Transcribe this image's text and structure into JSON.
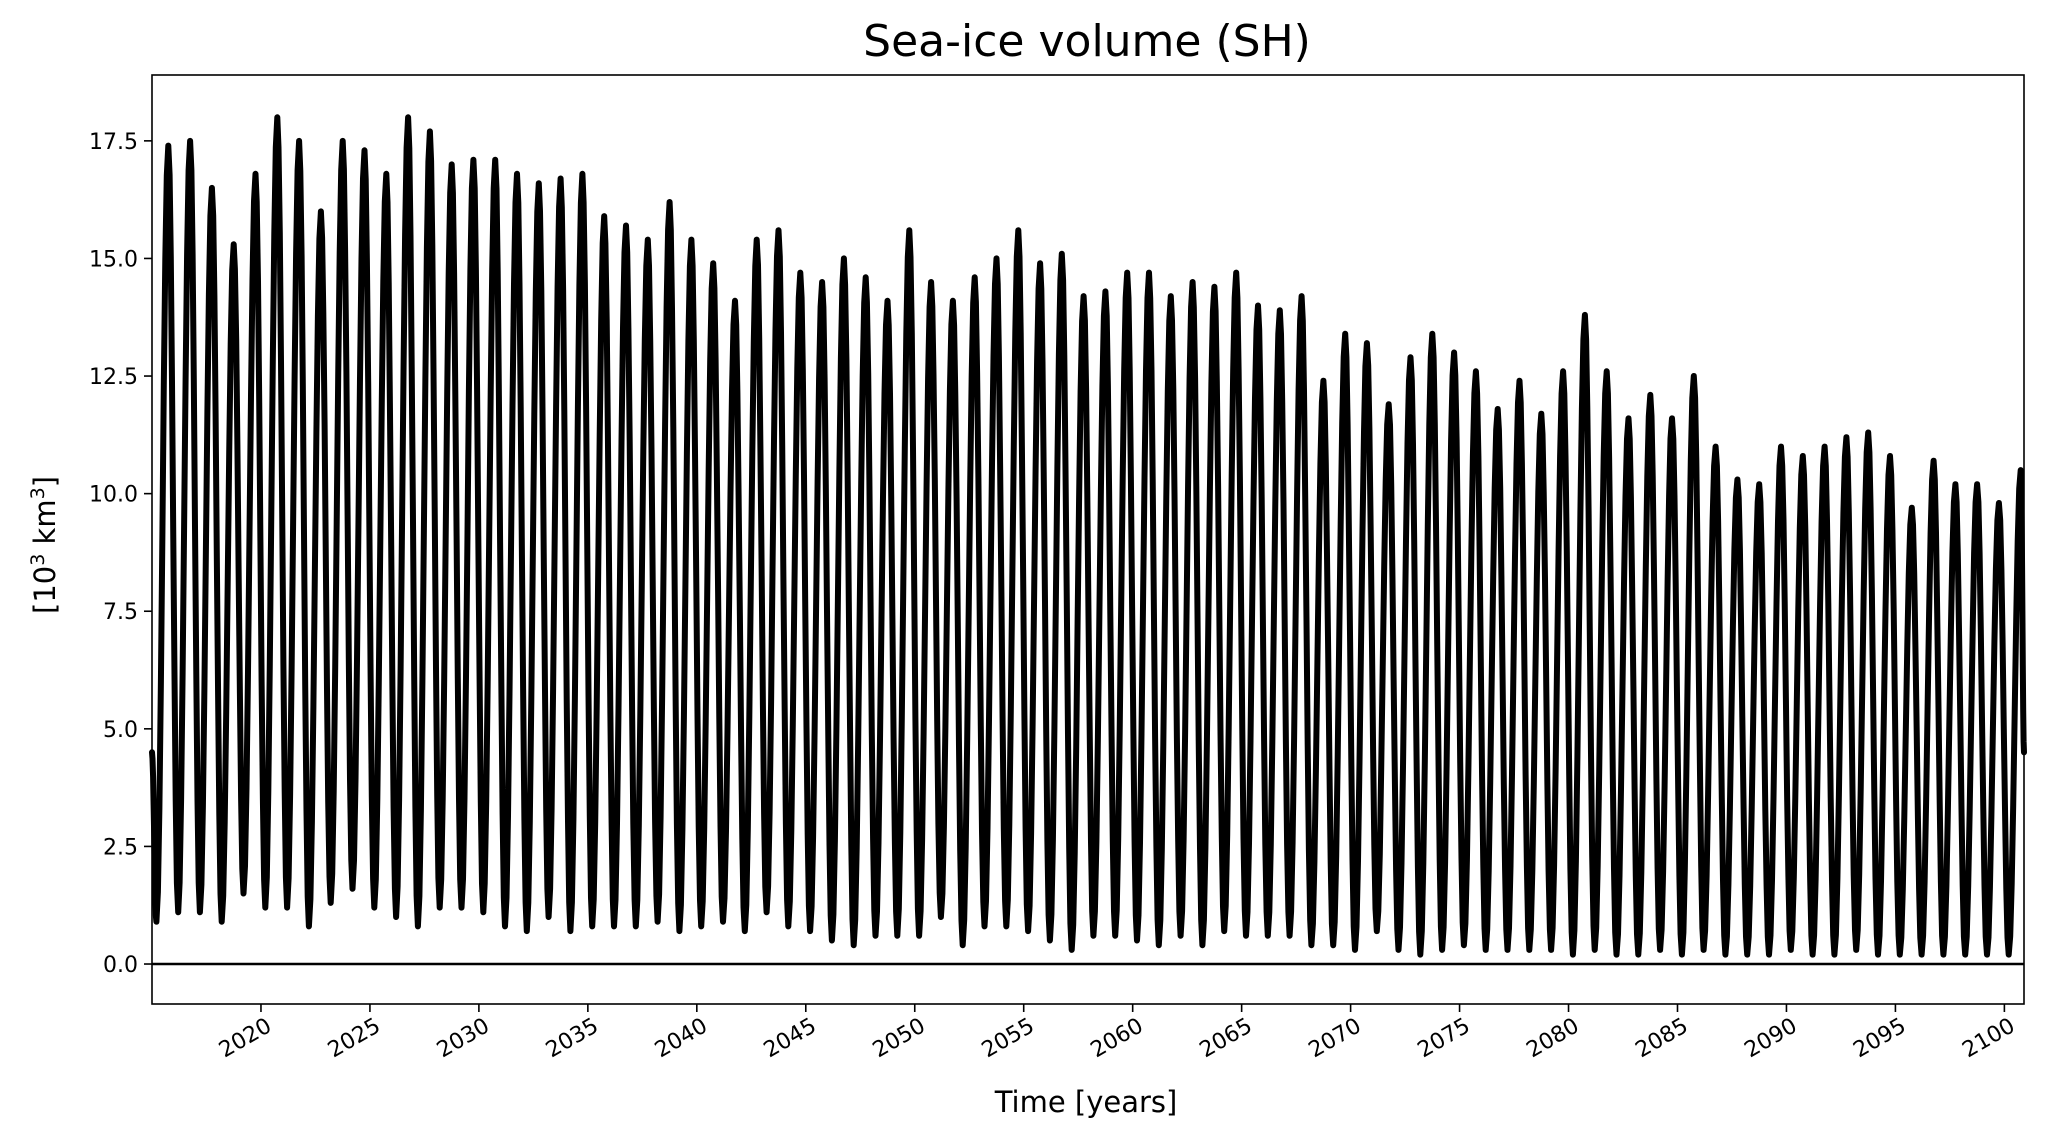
{
  "chart_data": {
    "type": "line",
    "title": "Sea-ice volume (SH)",
    "xlabel": "Time [years]",
    "ylabel": {
      "main": "[10",
      "sup1": "3",
      "mid": " km",
      "sup2": "3",
      "end": "]"
    },
    "xlim": [
      2015.0,
      2100.9
    ],
    "ylim": [
      -0.85,
      18.9
    ],
    "x_ticks": [
      2020,
      2025,
      2030,
      2035,
      2040,
      2045,
      2050,
      2055,
      2060,
      2065,
      2070,
      2075,
      2080,
      2085,
      2090,
      2095,
      2100
    ],
    "x_tick_labels": [
      "2020",
      "2025",
      "2030",
      "2035",
      "2040",
      "2045",
      "2050",
      "2055",
      "2060",
      "2065",
      "2070",
      "2075",
      "2080",
      "2085",
      "2090",
      "2095",
      "2100"
    ],
    "y_ticks": [
      0.0,
      2.5,
      5.0,
      7.5,
      10.0,
      12.5,
      15.0,
      17.5
    ],
    "y_tick_labels": [
      "0.0",
      "2.5",
      "5.0",
      "7.5",
      "10.0",
      "12.5",
      "15.0",
      "17.5"
    ],
    "grid": false,
    "reference_line": {
      "y": 0.0,
      "color": "#000000"
    },
    "series": [
      {
        "color": "#000000",
        "start_value": 4.5,
        "end_value": 4.5,
        "annual_maxima": {
          "x": [
            2015.75,
            2016.75,
            2017.75,
            2018.75,
            2019.75,
            2020.75,
            2021.75,
            2022.75,
            2023.75,
            2024.75,
            2025.75,
            2026.75,
            2027.75,
            2028.75,
            2029.75,
            2030.75,
            2031.75,
            2032.75,
            2033.75,
            2034.75,
            2035.75,
            2036.75,
            2037.75,
            2038.75,
            2039.75,
            2040.75,
            2041.75,
            2042.75,
            2043.75,
            2044.75,
            2045.75,
            2046.75,
            2047.75,
            2048.75,
            2049.75,
            2050.75,
            2051.75,
            2052.75,
            2053.75,
            2054.75,
            2055.75,
            2056.75,
            2057.75,
            2058.75,
            2059.75,
            2060.75,
            2061.75,
            2062.75,
            2063.75,
            2064.75,
            2065.75,
            2066.75,
            2067.75,
            2068.75,
            2069.75,
            2070.75,
            2071.75,
            2072.75,
            2073.75,
            2074.75,
            2075.75,
            2076.75,
            2077.75,
            2078.75,
            2079.75,
            2080.75,
            2081.75,
            2082.75,
            2083.75,
            2084.75,
            2085.75,
            2086.75,
            2087.75,
            2088.75,
            2089.75,
            2090.75,
            2091.75,
            2092.75,
            2093.75,
            2094.75,
            2095.75,
            2096.75,
            2097.75,
            2098.75,
            2099.75,
            2100.75
          ],
          "y": [
            17.4,
            17.5,
            16.5,
            15.3,
            16.8,
            18.0,
            17.5,
            16.0,
            17.5,
            17.3,
            16.8,
            18.0,
            17.7,
            17.0,
            17.1,
            17.1,
            16.8,
            16.6,
            16.7,
            16.8,
            15.9,
            15.7,
            15.4,
            16.2,
            15.4,
            14.9,
            14.1,
            15.4,
            15.6,
            14.7,
            14.5,
            15.0,
            14.6,
            14.1,
            15.6,
            14.5,
            14.1,
            14.6,
            15.0,
            15.6,
            14.9,
            15.1,
            14.2,
            14.3,
            14.7,
            14.7,
            14.2,
            14.5,
            14.4,
            14.7,
            14.0,
            13.9,
            14.2,
            12.4,
            13.4,
            13.2,
            11.9,
            12.9,
            13.4,
            13.0,
            12.6,
            11.8,
            12.4,
            11.7,
            12.6,
            13.8,
            12.6,
            11.6,
            12.1,
            11.6,
            12.5,
            11.0,
            10.3,
            10.2,
            11.0,
            10.8,
            11.0,
            11.2,
            11.3,
            10.8,
            9.7,
            10.7,
            10.2,
            10.2,
            9.8,
            10.5
          ]
        },
        "annual_minima": {
          "x": [
            2015.2,
            2016.2,
            2017.2,
            2018.2,
            2019.2,
            2020.2,
            2021.2,
            2022.2,
            2023.2,
            2024.2,
            2025.2,
            2026.2,
            2027.2,
            2028.2,
            2029.2,
            2030.2,
            2031.2,
            2032.2,
            2033.2,
            2034.2,
            2035.2,
            2036.2,
            2037.2,
            2038.2,
            2039.2,
            2040.2,
            2041.2,
            2042.2,
            2043.2,
            2044.2,
            2045.2,
            2046.2,
            2047.2,
            2048.2,
            2049.2,
            2050.2,
            2051.2,
            2052.2,
            2053.2,
            2054.2,
            2055.2,
            2056.2,
            2057.2,
            2058.2,
            2059.2,
            2060.2,
            2061.2,
            2062.2,
            2063.2,
            2064.2,
            2065.2,
            2066.2,
            2067.2,
            2068.2,
            2069.2,
            2070.2,
            2071.2,
            2072.2,
            2073.2,
            2074.2,
            2075.2,
            2076.2,
            2077.2,
            2078.2,
            2079.2,
            2080.2,
            2081.2,
            2082.2,
            2083.2,
            2084.2,
            2085.2,
            2086.2,
            2087.2,
            2088.2,
            2089.2,
            2090.2,
            2091.2,
            2092.2,
            2093.2,
            2094.2,
            2095.2,
            2096.2,
            2097.2,
            2098.2,
            2099.2,
            2100.2
          ],
          "y": [
            0.9,
            1.1,
            1.1,
            0.9,
            1.5,
            1.2,
            1.2,
            0.8,
            1.3,
            1.6,
            1.2,
            1.0,
            0.8,
            1.2,
            1.2,
            1.1,
            0.8,
            0.7,
            1.0,
            0.7,
            0.8,
            0.8,
            0.8,
            0.9,
            0.7,
            0.8,
            0.9,
            0.7,
            1.1,
            0.8,
            0.7,
            0.5,
            0.4,
            0.6,
            0.6,
            0.6,
            1.0,
            0.4,
            0.8,
            0.8,
            0.7,
            0.5,
            0.3,
            0.6,
            0.6,
            0.5,
            0.4,
            0.6,
            0.4,
            0.7,
            0.6,
            0.6,
            0.6,
            0.4,
            0.4,
            0.3,
            0.7,
            0.3,
            0.2,
            0.3,
            0.4,
            0.3,
            0.3,
            0.3,
            0.3,
            0.2,
            0.3,
            0.2,
            0.2,
            0.3,
            0.2,
            0.3,
            0.2,
            0.2,
            0.2,
            0.3,
            0.2,
            0.2,
            0.3,
            0.2,
            0.2,
            0.2,
            0.2,
            0.2,
            0.2,
            0.2
          ]
        }
      }
    ]
  }
}
